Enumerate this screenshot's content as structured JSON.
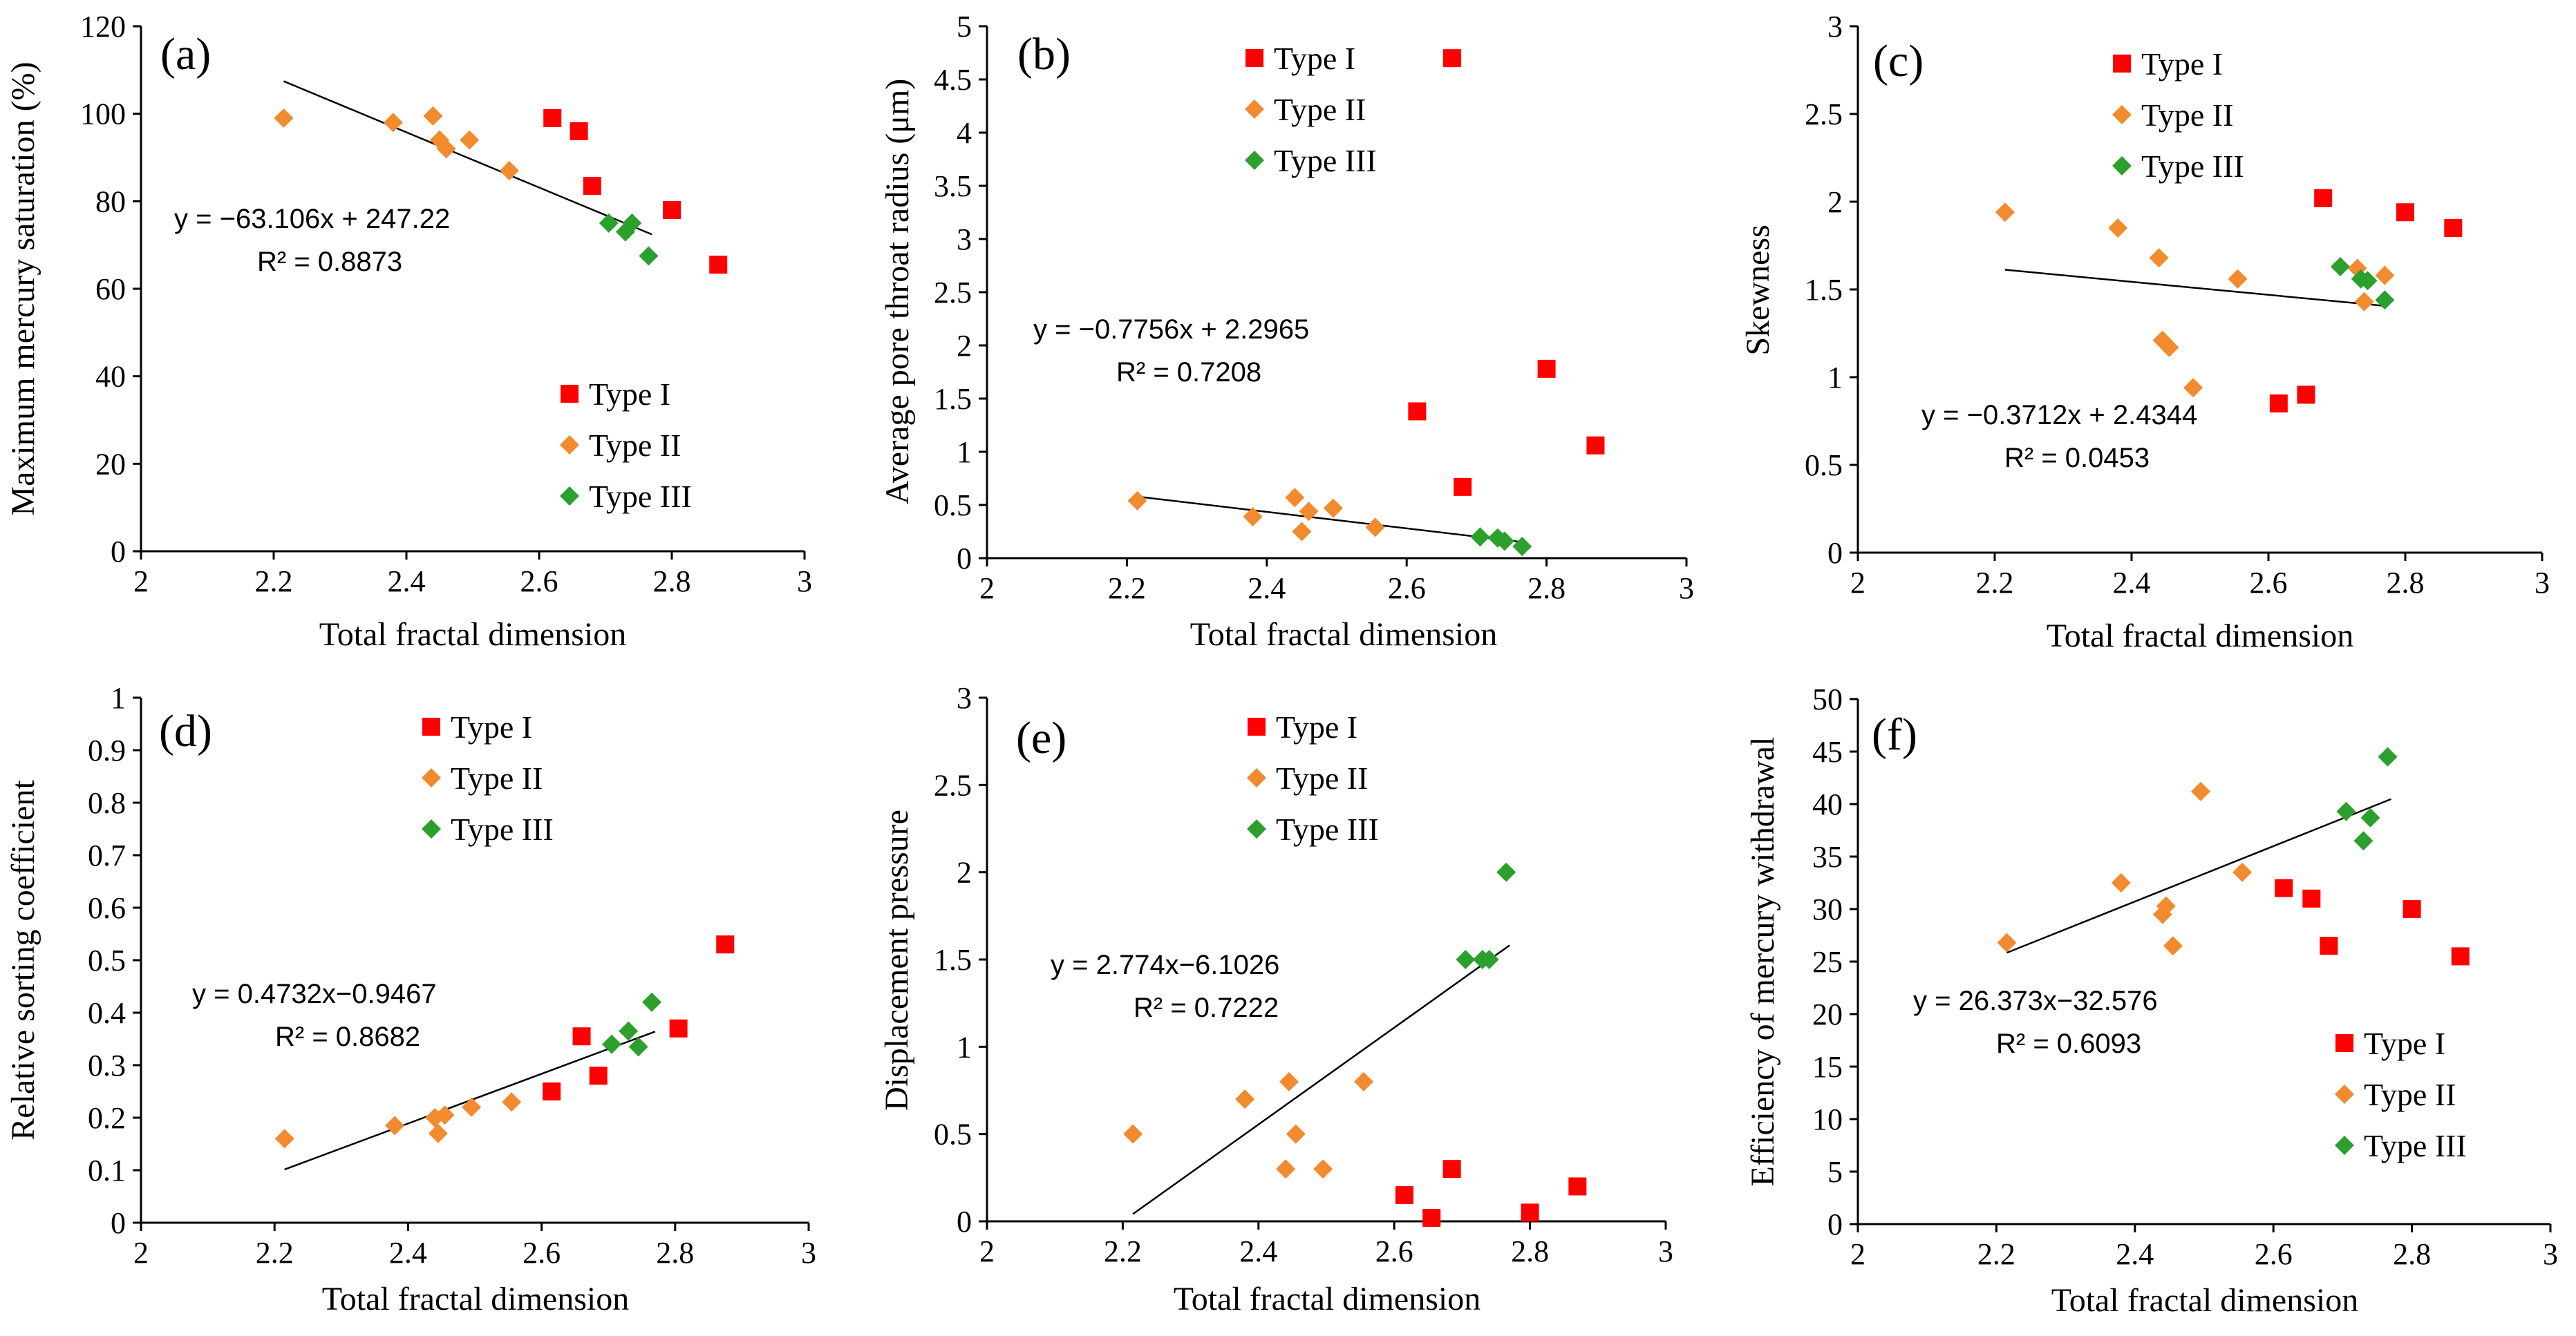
{
  "colors": {
    "type_i": "#ff0000",
    "type_ii": "#f28a2e",
    "type_iii": "#2ca02c",
    "axis": "#000000",
    "trend": "#000000"
  },
  "chart_data": [
    {
      "type": "scatter",
      "panel": "(a)",
      "xlabel": "Total fractal dimension",
      "ylabel": "Maximum mercury saturation (%)",
      "xlim": [
        2,
        3
      ],
      "ylim": [
        0,
        120
      ],
      "xticks": [
        "2",
        "2.2",
        "2.4",
        "2.6",
        "2.8",
        "3"
      ],
      "yticks": [
        "0",
        "20",
        "40",
        "60",
        "80",
        "100",
        "120"
      ],
      "legend": "lower-right",
      "series": [
        {
          "name": "Type I",
          "marker": "square",
          "color": "#ff0000",
          "points": [
            [
              2.62,
              99
            ],
            [
              2.66,
              96
            ],
            [
              2.68,
              83.5
            ],
            [
              2.8,
              78
            ],
            [
              2.87,
              65.5
            ]
          ]
        },
        {
          "name": "Type II",
          "marker": "diamond",
          "color": "#f28a2e",
          "points": [
            [
              2.215,
              99
            ],
            [
              2.38,
              98
            ],
            [
              2.44,
              99.5
            ],
            [
              2.45,
              94
            ],
            [
              2.46,
              92
            ],
            [
              2.495,
              94
            ],
            [
              2.555,
              87
            ]
          ]
        },
        {
          "name": "Type III",
          "marker": "diamond",
          "color": "#2ca02c",
          "points": [
            [
              2.705,
              75
            ],
            [
              2.73,
              73
            ],
            [
              2.74,
              75
            ],
            [
              2.765,
              67.5
            ]
          ]
        }
      ],
      "trendline": {
        "slope": -63.106,
        "intercept": 247.22,
        "x_range": [
          2.215,
          2.77
        ]
      },
      "equation": "y = −63.106x + 247.22",
      "r2": "R² = 0.8873"
    },
    {
      "type": "scatter",
      "panel": "(b)",
      "xlabel": "Total fractal dimension",
      "ylabel": "Average pore throat radius (μm)",
      "xlim": [
        2,
        3
      ],
      "ylim": [
        0,
        5
      ],
      "xticks": [
        "2",
        "2.2",
        "2.4",
        "2.6",
        "2.8",
        "3"
      ],
      "yticks": [
        "0",
        "0.5",
        "1",
        "1.5",
        "2",
        "2.5",
        "3",
        "3.5",
        "4",
        "4.5",
        "5"
      ],
      "legend": "top-left",
      "series": [
        {
          "name": "Type I",
          "marker": "square",
          "color": "#ff0000",
          "points": [
            [
              2.615,
              1.38
            ],
            [
              2.665,
              4.7
            ],
            [
              2.68,
              0.67
            ],
            [
              2.8,
              1.78
            ],
            [
              2.87,
              1.06
            ]
          ]
        },
        {
          "name": "Type II",
          "marker": "diamond",
          "color": "#f28a2e",
          "points": [
            [
              2.215,
              0.54
            ],
            [
              2.38,
              0.39
            ],
            [
              2.44,
              0.57
            ],
            [
              2.45,
              0.25
            ],
            [
              2.46,
              0.44
            ],
            [
              2.495,
              0.47
            ],
            [
              2.555,
              0.29
            ]
          ]
        },
        {
          "name": "Type III",
          "marker": "diamond",
          "color": "#2ca02c",
          "points": [
            [
              2.705,
              0.2
            ],
            [
              2.73,
              0.19
            ],
            [
              2.74,
              0.16
            ],
            [
              2.765,
              0.11
            ]
          ]
        }
      ],
      "trendline": {
        "slope": -0.7756,
        "intercept": 2.2965,
        "x_range": [
          2.215,
          2.77
        ]
      },
      "equation": "y = −0.7756x + 2.2965",
      "r2": "R² = 0.7208"
    },
    {
      "type": "scatter",
      "panel": "(c)",
      "xlabel": "Total fractal dimension",
      "ylabel": "Skewness",
      "xlim": [
        2,
        3
      ],
      "ylim": [
        0,
        3
      ],
      "xticks": [
        "2",
        "2.2",
        "2.4",
        "2.6",
        "2.8",
        "3"
      ],
      "yticks": [
        "0",
        "0.5",
        "1",
        "1.5",
        "2",
        "2.5",
        "3"
      ],
      "legend": "top-center",
      "series": [
        {
          "name": "Type I",
          "marker": "square",
          "color": "#ff0000",
          "points": [
            [
              2.615,
              0.85
            ],
            [
              2.655,
              0.9
            ],
            [
              2.68,
              2.02
            ],
            [
              2.8,
              1.94
            ],
            [
              2.87,
              1.85
            ]
          ]
        },
        {
          "name": "Type II",
          "marker": "diamond",
          "color": "#f28a2e",
          "points": [
            [
              2.215,
              1.94
            ],
            [
              2.38,
              1.85
            ],
            [
              2.44,
              1.68
            ],
            [
              2.445,
              1.21
            ],
            [
              2.455,
              1.17
            ],
            [
              2.49,
              0.94
            ],
            [
              2.555,
              1.56
            ],
            [
              2.73,
              1.62
            ],
            [
              2.74,
              1.43
            ],
            [
              2.77,
              1.58
            ]
          ]
        },
        {
          "name": "Type III",
          "marker": "diamond",
          "color": "#2ca02c",
          "points": [
            [
              2.705,
              1.63
            ],
            [
              2.735,
              1.56
            ],
            [
              2.745,
              1.55
            ],
            [
              2.77,
              1.44
            ]
          ]
        }
      ],
      "trendline": {
        "slope": -0.3712,
        "intercept": 2.4344,
        "x_range": [
          2.215,
          2.77
        ]
      },
      "equation": "y = −0.3712x + 2.4344",
      "r2": "R² = 0.0453"
    },
    {
      "type": "scatter",
      "panel": "(d)",
      "xlabel": "Total fractal dimension",
      "ylabel": "Relative sorting coefficient",
      "xlim": [
        2,
        3
      ],
      "ylim": [
        0,
        1
      ],
      "xticks": [
        "2",
        "2.2",
        "2.4",
        "2.6",
        "2.8",
        "3"
      ],
      "yticks": [
        "0",
        "0.1",
        "0.2",
        "0.3",
        "0.4",
        "0.5",
        "0.6",
        "0.7",
        "0.8",
        "0.9",
        "1"
      ],
      "legend": "top-center",
      "series": [
        {
          "name": "Type I",
          "marker": "square",
          "color": "#ff0000",
          "points": [
            [
              2.615,
              0.25
            ],
            [
              2.66,
              0.355
            ],
            [
              2.685,
              0.28
            ],
            [
              2.805,
              0.37
            ],
            [
              2.875,
              0.53
            ]
          ]
        },
        {
          "name": "Type II",
          "marker": "diamond",
          "color": "#f28a2e",
          "points": [
            [
              2.215,
              0.16
            ],
            [
              2.38,
              0.185
            ],
            [
              2.44,
              0.2
            ],
            [
              2.445,
              0.17
            ],
            [
              2.455,
              0.205
            ],
            [
              2.495,
              0.22
            ],
            [
              2.555,
              0.23
            ]
          ]
        },
        {
          "name": "Type III",
          "marker": "diamond",
          "color": "#2ca02c",
          "points": [
            [
              2.705,
              0.34
            ],
            [
              2.73,
              0.365
            ],
            [
              2.745,
              0.335
            ],
            [
              2.765,
              0.42
            ]
          ]
        }
      ],
      "trendline": {
        "slope": 0.4732,
        "intercept": -0.9467,
        "x_range": [
          2.215,
          2.77
        ]
      },
      "equation": "y = 0.4732x−0.9467",
      "r2": "R² = 0.8682"
    },
    {
      "type": "scatter",
      "panel": "(e)",
      "xlabel": "Total fractal dimension",
      "ylabel": "Displacement pressure",
      "xlim": [
        2,
        3
      ],
      "ylim": [
        0,
        3
      ],
      "xticks": [
        "2",
        "2.2",
        "2.4",
        "2.6",
        "2.8",
        "3"
      ],
      "yticks": [
        "0",
        "0.5",
        "1",
        "1.5",
        "2",
        "2.5",
        "3"
      ],
      "legend": "top-center",
      "series": [
        {
          "name": "Type I",
          "marker": "square",
          "color": "#ff0000",
          "points": [
            [
              2.615,
              0.15
            ],
            [
              2.655,
              0.02
            ],
            [
              2.685,
              0.3
            ],
            [
              2.8,
              0.05
            ],
            [
              2.87,
              0.2
            ]
          ]
        },
        {
          "name": "Type II",
          "marker": "diamond",
          "color": "#f28a2e",
          "points": [
            [
              2.215,
              0.5
            ],
            [
              2.38,
              0.7
            ],
            [
              2.44,
              0.3
            ],
            [
              2.445,
              0.8
            ],
            [
              2.455,
              0.5
            ],
            [
              2.495,
              0.3
            ],
            [
              2.555,
              0.8
            ]
          ]
        },
        {
          "name": "Type III",
          "marker": "diamond",
          "color": "#2ca02c",
          "points": [
            [
              2.705,
              1.5
            ],
            [
              2.73,
              1.5
            ],
            [
              2.74,
              1.5
            ],
            [
              2.765,
              2.0
            ]
          ]
        }
      ],
      "trendline": {
        "slope": 2.774,
        "intercept": -6.1026,
        "x_range": [
          2.215,
          2.77
        ]
      },
      "equation": "y = 2.774x−6.1026",
      "r2": "R² = 0.7222"
    },
    {
      "type": "scatter",
      "panel": "(f)",
      "xlabel": "Total fractal dimension",
      "ylabel": "Efficiency of mercury withdrawal",
      "xlim": [
        2,
        3
      ],
      "ylim": [
        0,
        50
      ],
      "xticks": [
        "2",
        "2.2",
        "2.4",
        "2.6",
        "2.8",
        "3"
      ],
      "yticks": [
        "0",
        "5",
        "10",
        "15",
        "20",
        "25",
        "30",
        "35",
        "40",
        "45",
        "50"
      ],
      "legend": "lower-right",
      "series": [
        {
          "name": "Type I",
          "marker": "square",
          "color": "#ff0000",
          "points": [
            [
              2.615,
              32
            ],
            [
              2.655,
              31
            ],
            [
              2.68,
              26.5
            ],
            [
              2.8,
              30
            ],
            [
              2.87,
              25.5
            ]
          ]
        },
        {
          "name": "Type II",
          "marker": "diamond",
          "color": "#f28a2e",
          "points": [
            [
              2.215,
              26.8
            ],
            [
              2.38,
              32.5
            ],
            [
              2.44,
              29.5
            ],
            [
              2.445,
              30.3
            ],
            [
              2.455,
              26.5
            ],
            [
              2.495,
              41.2
            ],
            [
              2.555,
              33.5
            ]
          ]
        },
        {
          "name": "Type III",
          "marker": "diamond",
          "color": "#2ca02c",
          "points": [
            [
              2.705,
              39.3
            ],
            [
              2.73,
              36.5
            ],
            [
              2.74,
              38.7
            ],
            [
              2.765,
              44.5
            ]
          ]
        }
      ],
      "trendline": {
        "slope": 26.373,
        "intercept": -32.576,
        "x_range": [
          2.215,
          2.77
        ]
      },
      "equation": "y = 26.373x−32.576",
      "r2": "R² = 0.6093"
    }
  ]
}
